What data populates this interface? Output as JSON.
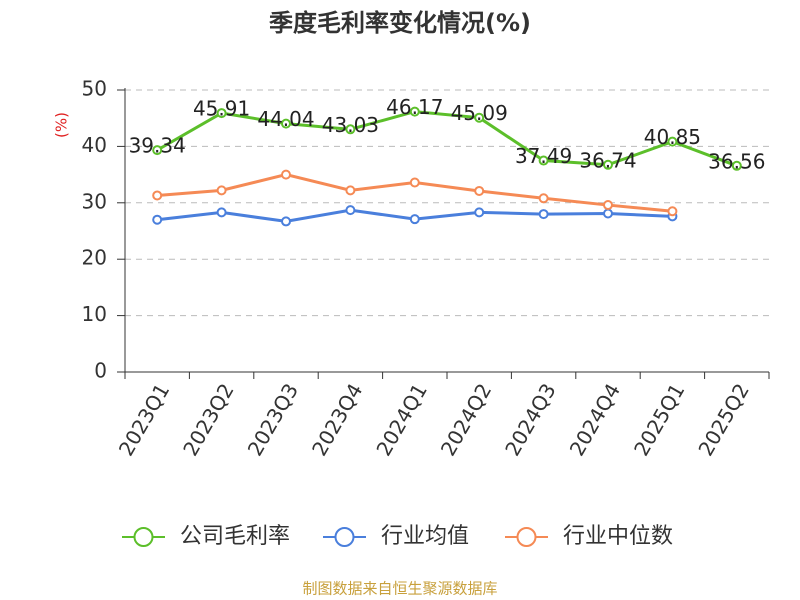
{
  "chart_data": {
    "type": "line",
    "title": "季度毛利率变化情况(%)",
    "y_label": "(%)",
    "categories": [
      "2023Q1",
      "2023Q2",
      "2023Q3",
      "2023Q4",
      "2024Q1",
      "2024Q2",
      "2024Q3",
      "2024Q4",
      "2025Q1",
      "2025Q2"
    ],
    "series": [
      {
        "name": "公司毛利率",
        "color": "#5cbf2a",
        "values": [
          39.34,
          45.91,
          44.04,
          43.03,
          46.17,
          45.09,
          37.49,
          36.74,
          40.85,
          36.56
        ],
        "show_labels": true
      },
      {
        "name": "行业均值",
        "color": "#4a7fdc",
        "values": [
          27.0,
          28.3,
          26.7,
          28.7,
          27.1,
          28.3,
          28.0,
          28.1,
          27.6,
          null
        ]
      },
      {
        "name": "行业中位数",
        "color": "#f58a55",
        "values": [
          31.3,
          32.2,
          35.0,
          32.2,
          33.6,
          32.1,
          30.8,
          29.6,
          28.5,
          null
        ]
      }
    ],
    "ylim": [
      0,
      50
    ],
    "yticks": [
      0,
      10,
      20,
      30,
      40,
      50
    ],
    "grid": true,
    "source": "制图数据来自恒生聚源数据库"
  }
}
